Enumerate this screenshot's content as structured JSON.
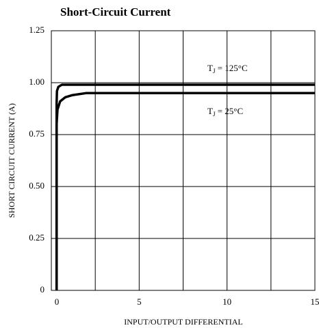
{
  "chart_data": {
    "type": "line",
    "title": "Short-Circuit Current",
    "xlabel": "INPUT/OUTPUT DIFFERENTIAL",
    "ylabel": "SHORT CIRCUIT CURRENT (A)",
    "xlim": [
      0,
      15
    ],
    "ylim": [
      0,
      1.25
    ],
    "xticks": [
      0,
      5,
      10,
      15
    ],
    "xgrid": [
      2.5,
      7.5,
      12.5
    ],
    "yticks": [
      0,
      0.25,
      {
        "value": 0.5,
        "label": "0.50"
      },
      0.75,
      {
        "value": 1,
        "label": "1.00"
      },
      1.25
    ],
    "grid": true,
    "series": [
      {
        "color": "#000000",
        "x": [
          0.3,
          0.3,
          0.32,
          0.4,
          0.6,
          1,
          15
        ],
        "values": [
          0,
          0.9,
          0.96,
          0.98,
          0.99,
          0.99,
          0.99
        ]
      },
      {
        "color": "#000000",
        "x": [
          0.3,
          0.3,
          0.35,
          0.5,
          0.8,
          1.2,
          2,
          15
        ],
        "values": [
          0,
          0.8,
          0.87,
          0.91,
          0.93,
          0.94,
          0.95,
          0.95
        ]
      }
    ],
    "annotations": [
      [
        "T",
        "J",
        " = 125°C"
      ],
      [
        "T",
        "J",
        " = 25°C"
      ]
    ]
  }
}
